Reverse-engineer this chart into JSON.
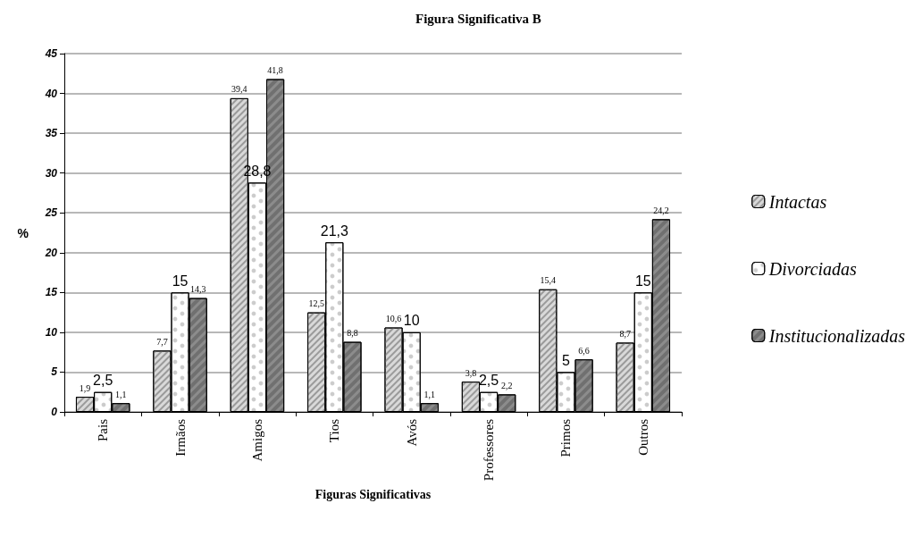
{
  "chart_data": {
    "type": "bar",
    "title": "Figura Significativa B",
    "xlabel": "Figuras Significativas",
    "ylabel": "%",
    "categories": [
      "Pais",
      "Irmãos",
      "Amigos",
      "Tios",
      "Avós",
      "Professores",
      "Primos",
      "Outros"
    ],
    "series": [
      {
        "name": "Intactas",
        "color": "#d9d9d9",
        "values": [
          1.9,
          7.7,
          39.4,
          12.5,
          10.6,
          3.8,
          15.4,
          8.7
        ],
        "value_labels": [
          "1,9",
          "7,7",
          "39,4",
          "12,5",
          "10,6",
          "3,8",
          "15,4",
          "8,7"
        ]
      },
      {
        "name": "Divorciadas",
        "color": "#ffffff",
        "values": [
          2.5,
          15,
          28.8,
          21.3,
          10,
          2.5,
          5,
          15
        ],
        "value_labels": [
          "2,5",
          "15",
          "28,8",
          "21,3",
          "10",
          "2,5",
          "5",
          "15"
        ]
      },
      {
        "name": "Institucionalizadas",
        "color": "#8c8c8c",
        "values": [
          1.1,
          14.3,
          41.8,
          8.8,
          1.1,
          2.2,
          6.6,
          24.2
        ],
        "value_labels": [
          "1,1",
          "14,3",
          "41,8",
          "8,8",
          "1,1",
          "2,2",
          "6,6",
          "24,2"
        ]
      }
    ],
    "ylim": [
      0,
      45
    ],
    "yticks": [
      0,
      5,
      10,
      15,
      20,
      25,
      30,
      35,
      40,
      45
    ],
    "grid": "y",
    "legend": "right"
  }
}
